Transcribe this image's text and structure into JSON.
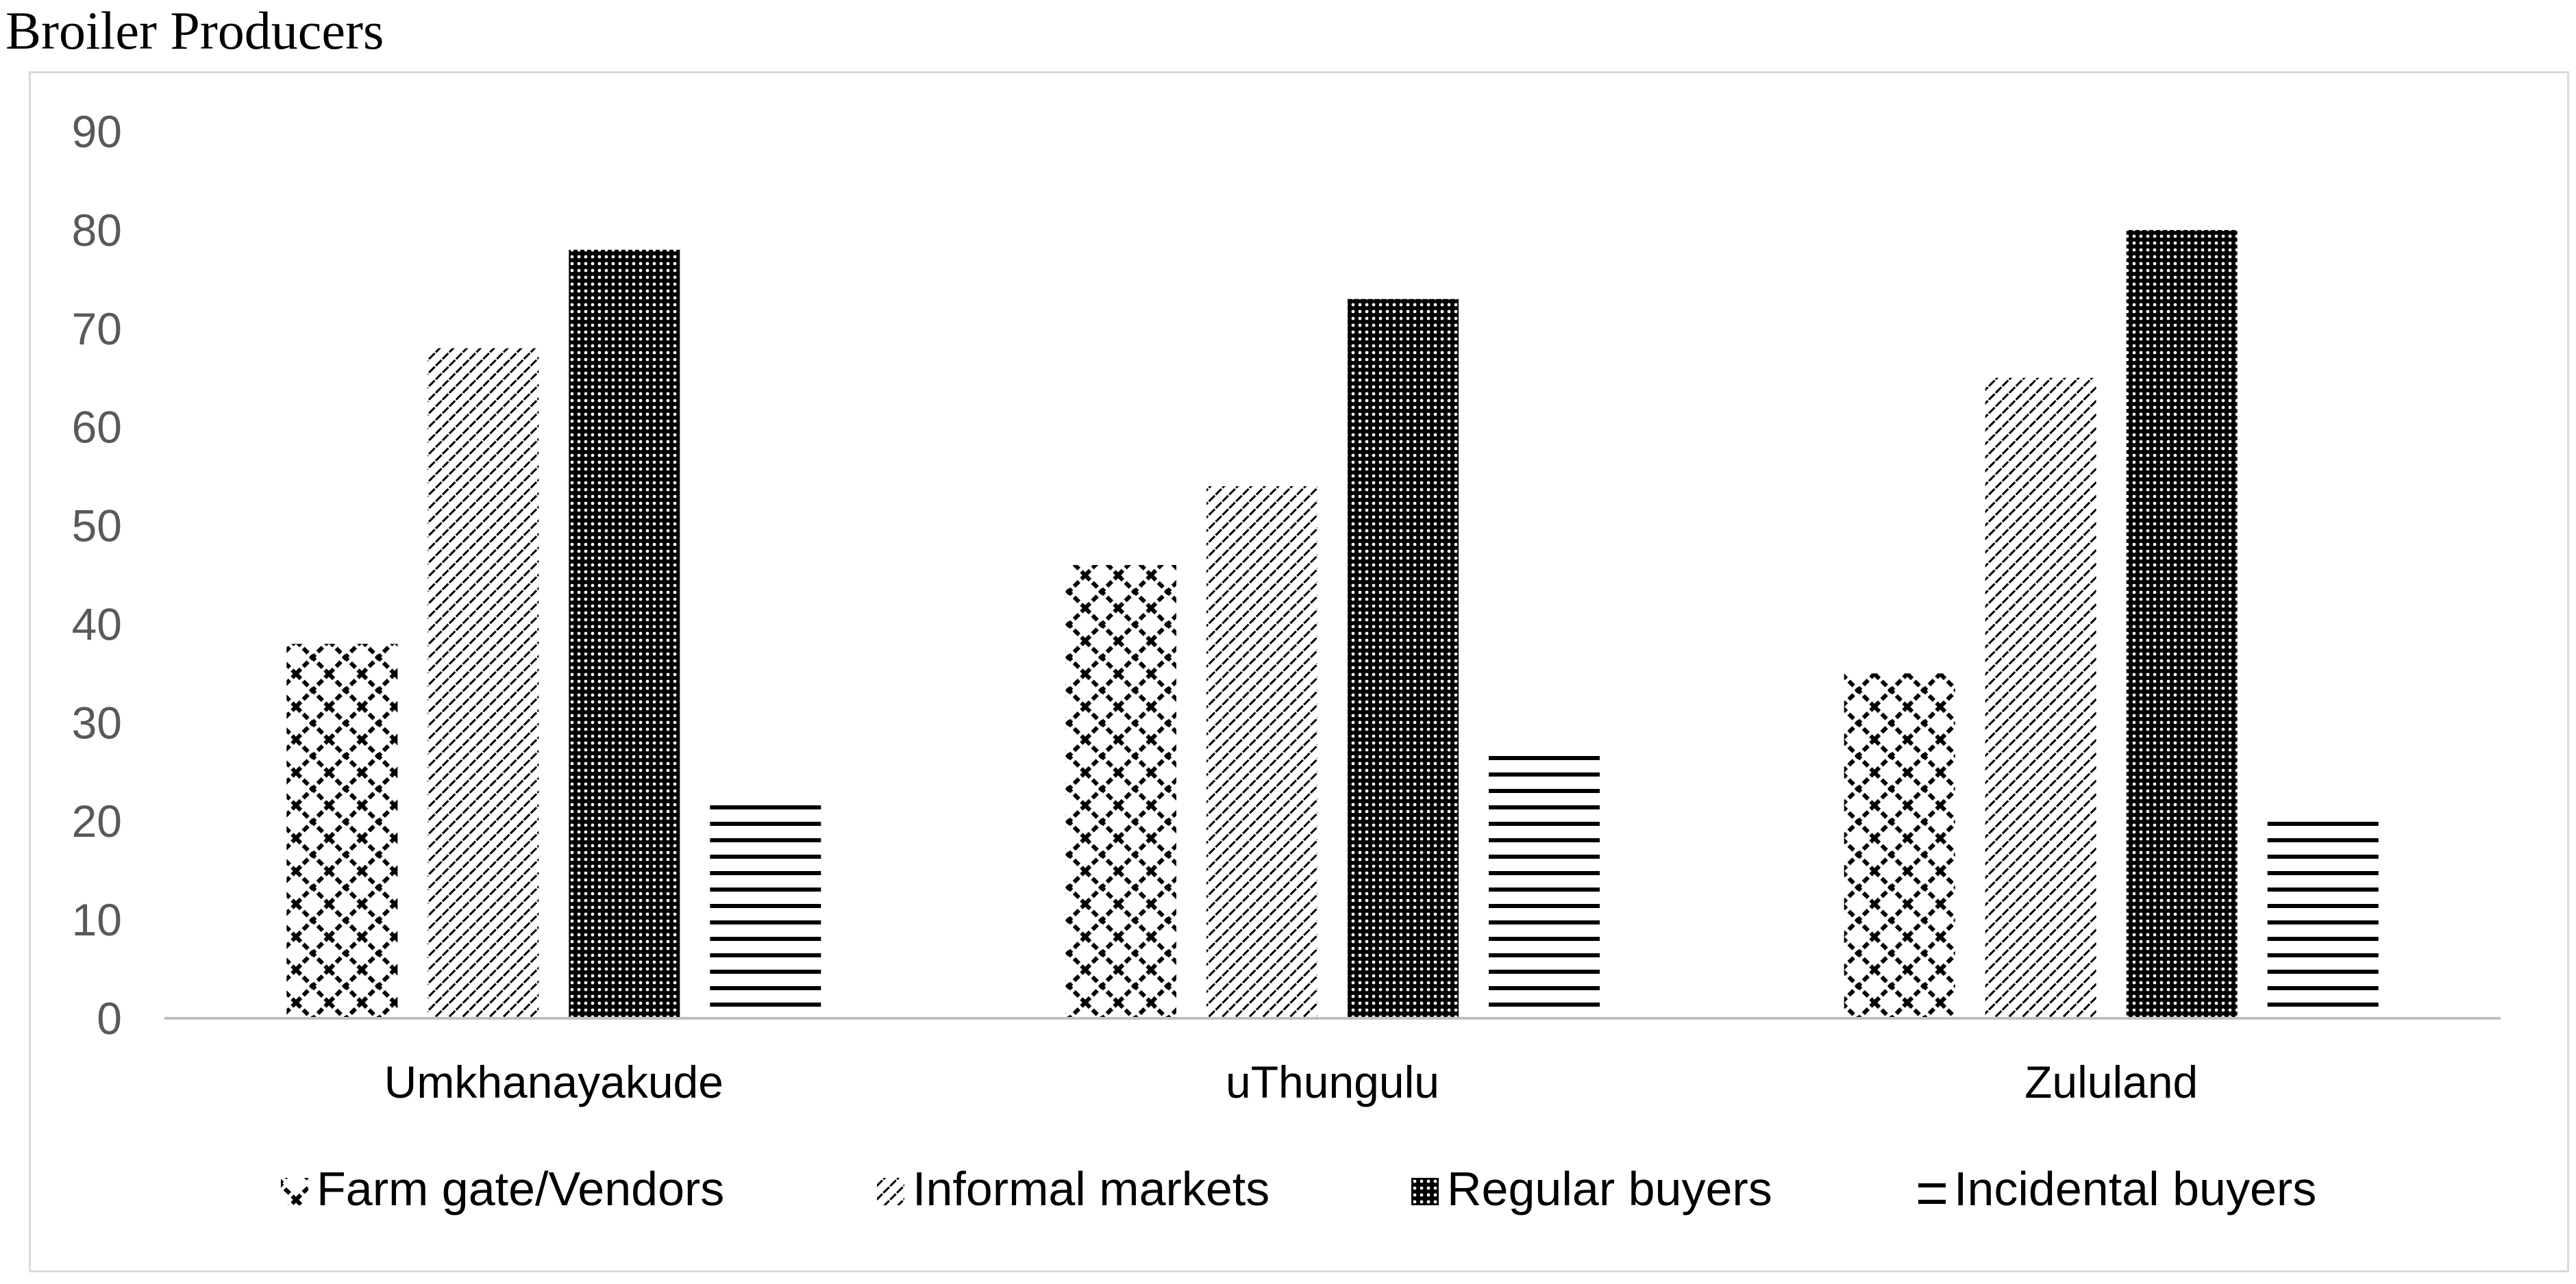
{
  "chart_data": {
    "type": "bar",
    "title": "Broiler Producers",
    "xlabel": "",
    "ylabel": "",
    "categories": [
      "Umkhanayakude",
      "uThungulu",
      "Zululand"
    ],
    "ylim": [
      0,
      90
    ],
    "yticks": [
      0,
      10,
      20,
      30,
      40,
      50,
      60,
      70,
      80,
      90
    ],
    "grid": false,
    "legend_position": "bottom",
    "series": [
      {
        "name": "Farm gate/Vendors",
        "values": [
          38,
          46,
          35
        ],
        "pattern": "zigzag"
      },
      {
        "name": "Informal markets",
        "values": [
          68,
          54,
          65
        ],
        "pattern": "diagonal-hatch"
      },
      {
        "name": "Regular buyers",
        "values": [
          78,
          73,
          80
        ],
        "pattern": "dotted-dark"
      },
      {
        "name": "Incidental buyers",
        "values": [
          22,
          27,
          20
        ],
        "pattern": "horizontal-lines"
      }
    ],
    "colors": {
      "axis": "#bfbfbf",
      "tick_text": "#595959",
      "bar_ink": "#000000",
      "background": "#ffffff"
    }
  }
}
